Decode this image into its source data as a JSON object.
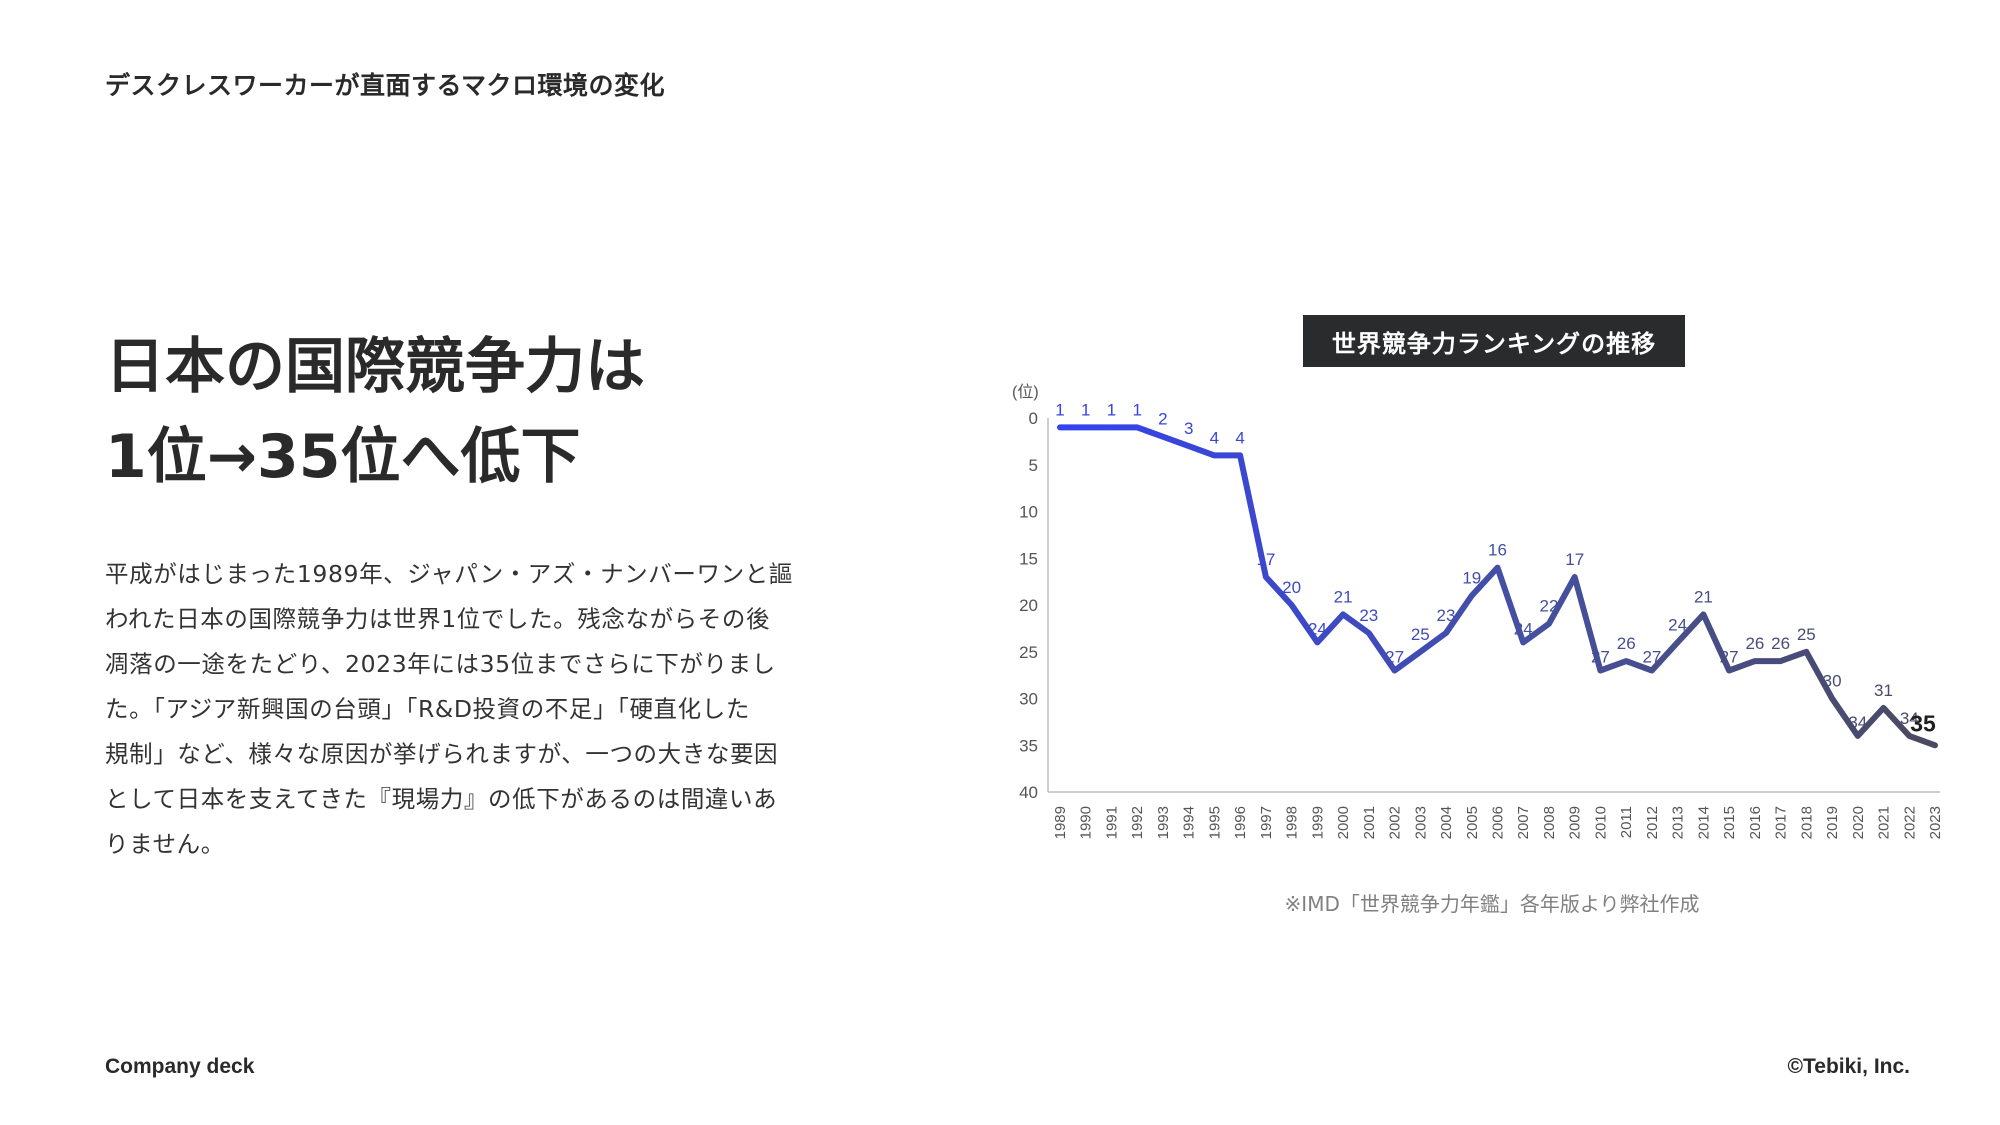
{
  "header": {
    "title": "デスクレスワーカーが直面するマクロ環境の変化"
  },
  "headline": {
    "line1": "日本の国際競争力は",
    "line2": "1位→35位へ低下"
  },
  "body": {
    "lines": [
      "平成がはじまった1989年、ジャパン・アズ・ナンバーワンと謳",
      "われた日本の国際競争力は世界1位でした。残念ながらその後",
      "凋落の一途をたどり、2023年には35位までさらに下がりまし",
      "た。「アジア新興国の台頭」「R&D投資の不足」「硬直化した",
      "規制」など、様々な原因が挙げられますが、一つの大きな要因",
      "として日本を支えてきた『現場力』の低下があるのは間違いあ",
      "りません。"
    ]
  },
  "chart_data": {
    "type": "line",
    "title": "世界競争力ランキングの推移",
    "ylabel": "(位)",
    "ylim": [
      0,
      40
    ],
    "y_inverted": true,
    "y_ticks": [
      0,
      5,
      10,
      15,
      20,
      25,
      30,
      35,
      40
    ],
    "x": [
      "1989",
      "1990",
      "1991",
      "1992",
      "1993",
      "1994",
      "1995",
      "1996",
      "1997",
      "1998",
      "1999",
      "2000",
      "2001",
      "2002",
      "2003",
      "2004",
      "2005",
      "2006",
      "2007",
      "2008",
      "2009",
      "2010",
      "2011",
      "2012",
      "2013",
      "2014",
      "2015",
      "2016",
      "2017",
      "2018",
      "2019",
      "2020",
      "2021",
      "2022",
      "2023"
    ],
    "values": [
      1,
      1,
      1,
      1,
      2,
      3,
      4,
      4,
      17,
      20,
      24,
      21,
      23,
      27,
      25,
      23,
      19,
      16,
      24,
      22,
      17,
      27,
      26,
      27,
      24,
      21,
      27,
      26,
      26,
      25,
      30,
      34,
      31,
      34,
      35
    ],
    "colors": {
      "start": "#3442f0",
      "mid": "#45509e",
      "end": "#4a4a62"
    },
    "grid": false,
    "highlight_last": true,
    "note": "※IMD「世界競争力年鑑」各年版より弊社作成"
  },
  "footer": {
    "left": "Company deck",
    "right": "©Tebiki, Inc."
  }
}
